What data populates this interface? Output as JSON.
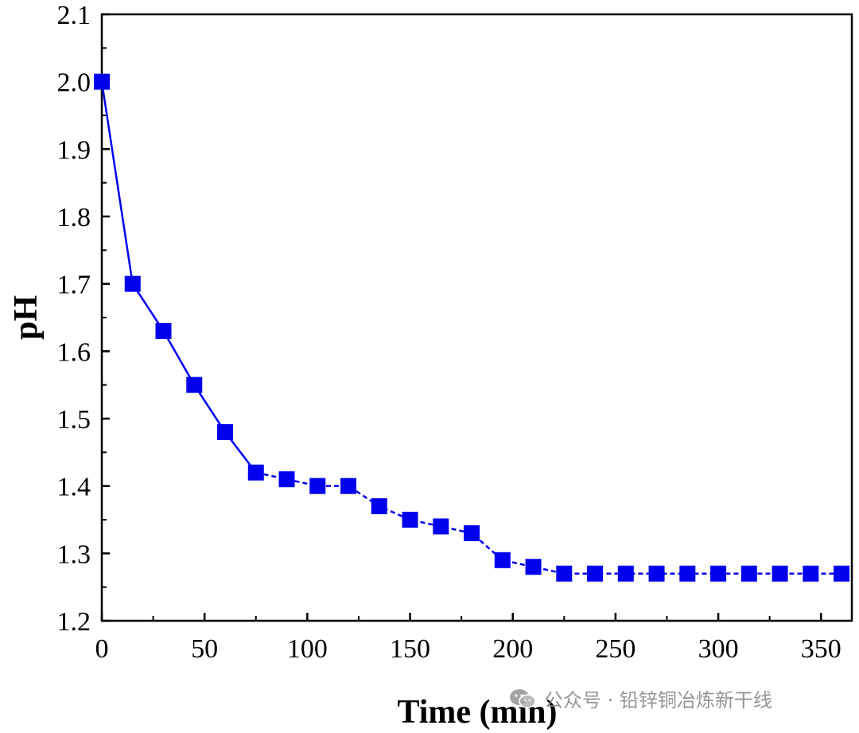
{
  "chart_data": {
    "type": "line",
    "title": "",
    "xlabel": "Time (min)",
    "ylabel": "pH",
    "xlim": [
      0,
      365
    ],
    "ylim": [
      1.2,
      2.1
    ],
    "xticks": [
      0,
      50,
      100,
      150,
      200,
      250,
      300,
      350
    ],
    "yticks": [
      1.2,
      1.3,
      1.4,
      1.5,
      1.6,
      1.7,
      1.8,
      1.9,
      2.0,
      2.1
    ],
    "grid": false,
    "series": [
      {
        "name": "pH",
        "color": "#0000ee",
        "marker": "square",
        "x": [
          0,
          15,
          30,
          45,
          60,
          75,
          90,
          105,
          120,
          135,
          150,
          165,
          180,
          195,
          210,
          225,
          240,
          255,
          270,
          285,
          300,
          315,
          330,
          345,
          360
        ],
        "values": [
          2.0,
          1.7,
          1.63,
          1.55,
          1.48,
          1.42,
          1.41,
          1.4,
          1.4,
          1.37,
          1.35,
          1.34,
          1.33,
          1.29,
          1.28,
          1.27,
          1.27,
          1.27,
          1.27,
          1.27,
          1.27,
          1.27,
          1.27,
          1.27,
          1.27
        ]
      }
    ]
  },
  "watermark": {
    "text": "公众号 · 铅锌铜冶炼新干线",
    "icon": "wechat-icon"
  }
}
